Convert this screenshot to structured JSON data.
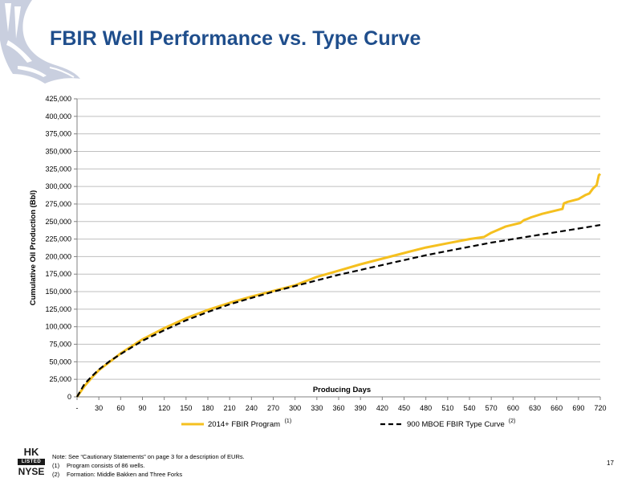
{
  "slide": {
    "title": "FBIR Well Performance vs. Type Curve",
    "page_number": "17"
  },
  "logo": {
    "icon": "eagle-wing-icon",
    "badge_top": "HK",
    "badge_mid": "LISTED",
    "badge_bottom": "NYSE"
  },
  "notes": {
    "line1": "Note: See “Cautionary Statements” on page 3 for a description of EURs.",
    "items": [
      {
        "num": "(1)",
        "text": "Program consists of 86 wells."
      },
      {
        "num": "(2)",
        "text": "Formation: Middle  Bakken and Three Forks"
      }
    ]
  },
  "colors": {
    "title": "#1f4e8c",
    "program_series": "#f5c01f",
    "type_curve_series": "#000000",
    "grid": "#bfbfbf",
    "logo": "#c9cfdf"
  },
  "chart_data": {
    "type": "line",
    "title": "",
    "xlabel": "Producing Days",
    "ylabel": "Cumulative Oil Production (Bbl)",
    "xlim": [
      0,
      720
    ],
    "ylim": [
      0,
      425000
    ],
    "x_ticks": [
      0,
      30,
      60,
      90,
      120,
      150,
      180,
      210,
      240,
      270,
      300,
      330,
      360,
      390,
      420,
      450,
      480,
      510,
      540,
      570,
      600,
      630,
      660,
      690,
      720
    ],
    "x_tick_labels": [
      "-",
      "30",
      "60",
      "90",
      "120",
      "150",
      "180",
      "210",
      "240",
      "270",
      "300",
      "330",
      "360",
      "390",
      "420",
      "450",
      "480",
      "510",
      "540",
      "570",
      "600",
      "630",
      "660",
      "690",
      "720"
    ],
    "y_ticks": [
      0,
      25000,
      50000,
      75000,
      100000,
      125000,
      150000,
      175000,
      200000,
      225000,
      250000,
      275000,
      300000,
      325000,
      350000,
      375000,
      400000,
      425000
    ],
    "y_tick_labels": [
      "0",
      "25,000",
      "50,000",
      "75,000",
      "100,000",
      "125,000",
      "150,000",
      "175,000",
      "200,000",
      "225,000",
      "250,000",
      "275,000",
      "300,000",
      "325,000",
      "350,000",
      "375,000",
      "400,000",
      "425,000"
    ],
    "grid": true,
    "legend_position": "bottom",
    "series": [
      {
        "name": "2014+ FBIR Program",
        "superscript": "(1)",
        "style": "solid",
        "color": "#f5c01f",
        "x": [
          0,
          10,
          20,
          30,
          45,
          60,
          90,
          120,
          150,
          180,
          210,
          240,
          270,
          300,
          330,
          360,
          390,
          420,
          450,
          480,
          510,
          540,
          560,
          570,
          590,
          610,
          615,
          618,
          625,
          640,
          660,
          668,
          670,
          675,
          690,
          700,
          705,
          710,
          715,
          718,
          720
        ],
        "y": [
          0,
          15000,
          27000,
          38000,
          50000,
          62000,
          82000,
          98000,
          112000,
          124000,
          134000,
          143000,
          151000,
          159000,
          171000,
          180000,
          189000,
          197000,
          205000,
          213000,
          219000,
          225000,
          228000,
          234000,
          243000,
          248000,
          252000,
          253000,
          256000,
          261000,
          266000,
          268000,
          276000,
          278000,
          282000,
          288000,
          290000,
          297000,
          302000,
          316000,
          318000
        ]
      },
      {
        "name": "900 MBOE FBIR Type Curve",
        "superscript": "(2)",
        "style": "dashed",
        "color": "#000000",
        "x": [
          0,
          10,
          20,
          30,
          45,
          60,
          90,
          120,
          150,
          180,
          210,
          240,
          270,
          300,
          330,
          360,
          390,
          420,
          450,
          480,
          510,
          540,
          570,
          600,
          630,
          660,
          690,
          720
        ],
        "y": [
          0,
          18000,
          29000,
          39000,
          51000,
          61000,
          80000,
          95000,
          109000,
          121000,
          132000,
          141000,
          150000,
          158000,
          166000,
          174000,
          181000,
          188000,
          195000,
          202000,
          208000,
          214000,
          220000,
          225000,
          230000,
          235000,
          240000,
          245000
        ]
      }
    ]
  }
}
